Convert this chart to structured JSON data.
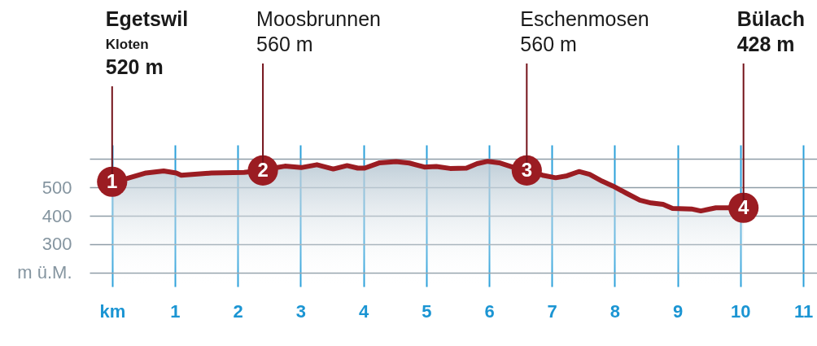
{
  "chart_data": {
    "type": "area",
    "xlim": [
      -0.36,
      11.22
    ],
    "ylim": [
      150,
      650
    ],
    "xticks": [
      {
        "value": 0,
        "label": "km"
      },
      1,
      2,
      3,
      4,
      5,
      6,
      7,
      8,
      9,
      10,
      11
    ],
    "yticks": [
      {
        "value": 200,
        "label": "m ü.M."
      },
      300,
      400,
      500,
      {
        "value": 600,
        "label": null
      }
    ],
    "grid": true,
    "x": [
      0,
      0.24,
      0.54,
      0.82,
      1.02,
      1.1,
      1.58,
      2.1,
      2.4,
      2.49,
      2.75,
      3.01,
      3.26,
      3.52,
      3.74,
      3.91,
      4.02,
      4.26,
      4.52,
      4.73,
      4.97,
      5.16,
      5.38,
      5.64,
      5.81,
      5.98,
      6.16,
      6.37,
      6.6,
      6.85,
      7.06,
      7.24,
      7.43,
      7.6,
      7.8,
      7.97,
      8.19,
      8.4,
      8.58,
      8.77,
      8.92,
      9.22,
      9.37,
      9.61,
      9.87,
      10.05
    ],
    "series": [
      {
        "color": "#9b1c22",
        "line_style": "solid",
        "values": [
          520,
          532,
          551,
          558,
          551,
          543,
          551,
          553,
          560,
          565,
          575,
          570,
          580,
          565,
          577,
          568,
          568,
          587,
          591,
          586,
          572,
          574,
          567,
          568,
          584,
          592,
          587,
          572,
          560,
          543,
          534,
          541,
          556,
          546,
          522,
          505,
          479,
          455,
          445,
          440,
          426,
          424,
          417,
          428,
          428,
          428
        ]
      },
      {
        "type": "scatter",
        "color": "#9b1c22",
        "marker": "circle",
        "x": [
          0,
          2.4,
          6.6,
          10.05
        ],
        "values": [
          520,
          560,
          560,
          428
        ]
      }
    ],
    "annotations": [
      {
        "text": "Egetswil\nKloten\n520 m",
        "x": 0,
        "y": 520
      },
      {
        "text": "Moosbrunnen\n560 m",
        "x": 2.4,
        "y": 560
      },
      {
        "text": "Eschenmosen\n560 m",
        "x": 6.6,
        "y": 560
      },
      {
        "text": "Bülach\n428 m",
        "x": 10.05,
        "y": 428
      },
      {
        "text": "1",
        "x": 0,
        "y": 520
      },
      {
        "text": "2",
        "x": 2.4,
        "y": 560
      },
      {
        "text": "3",
        "x": 6.6,
        "y": 560
      },
      {
        "text": "4",
        "x": 10.05,
        "y": 428
      }
    ]
  }
}
